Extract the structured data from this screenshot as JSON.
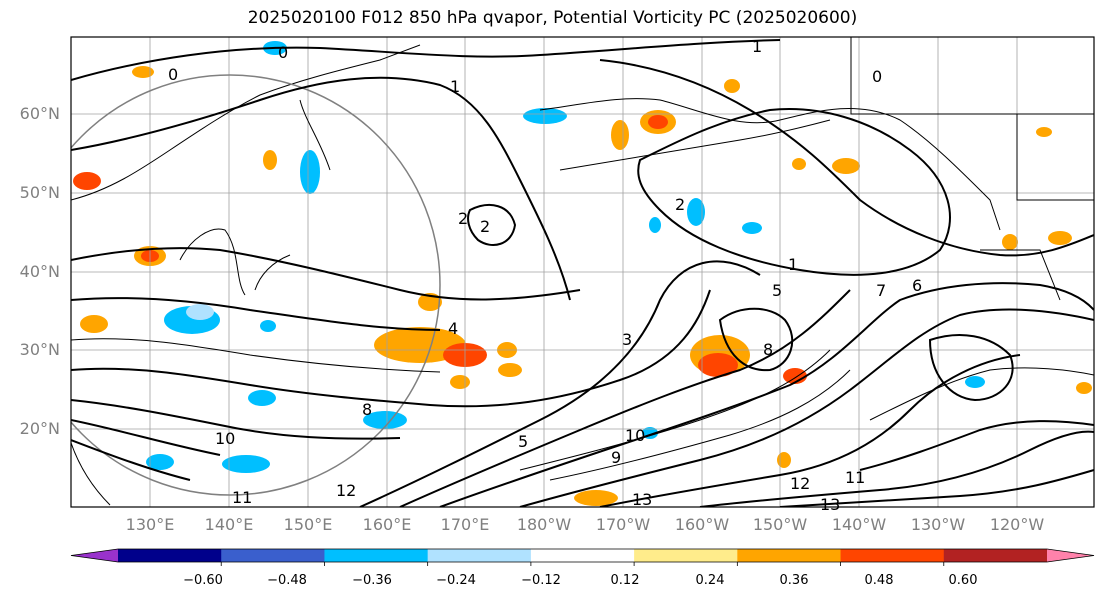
{
  "title": "2025020100 F012 850 hPa qvapor, Potential Vorticity PC (2025020600)",
  "lat_labels": [
    "60°N",
    "50°N",
    "40°N",
    "30°N",
    "20°N"
  ],
  "lon_labels": [
    "130°E",
    "140°E",
    "150°E",
    "160°E",
    "170°E",
    "180°W",
    "170°W",
    "160°W",
    "150°W",
    "140°W",
    "130°W",
    "120°W"
  ],
  "colorbar": {
    "ticks": [
      "−0.60",
      "−0.48",
      "−0.36",
      "−0.24",
      "−0.12",
      "0.12",
      "0.24",
      "0.36",
      "0.48",
      "0.60"
    ],
    "colors": [
      "#9932cc",
      "#00008b",
      "#3a5fcd",
      "#00bfff",
      "#b0e2ff",
      "#ffffff",
      "#ffec8b",
      "#ffa500",
      "#ff4500",
      "#b22222",
      "#ff82ab"
    ]
  },
  "contour_labels": [
    "0",
    "0",
    "0",
    "1",
    "1",
    "1",
    "2",
    "2",
    "2",
    "3",
    "4",
    "5",
    "5",
    "6",
    "7",
    "8",
    "8",
    "9",
    "10",
    "10",
    "11",
    "11",
    "12",
    "12",
    "13",
    "13"
  ]
}
